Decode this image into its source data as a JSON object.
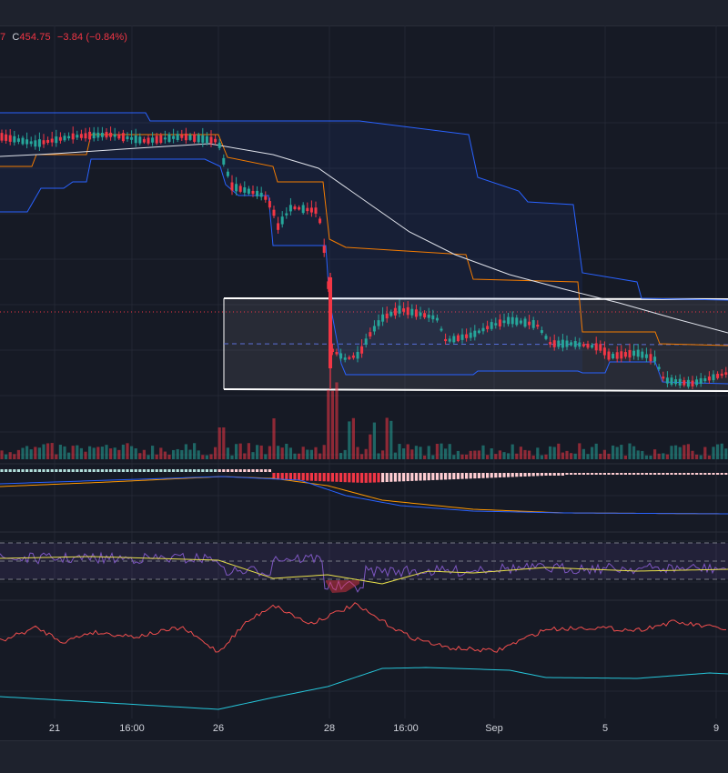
{
  "legend": {
    "cut_prefix": "7",
    "close_label": "C",
    "close_value": "454.75",
    "change": "−3.84 (−0.84%)"
  },
  "colors": {
    "up": "#26a69a",
    "down": "#f23645",
    "band_blue": "#2962ff",
    "band_orange": "#f57c00",
    "ma_white": "#e0e3eb",
    "rsi_purple": "#7e57c2",
    "rsi_yellow": "#e8e04a",
    "osc_red": "#f04e4e",
    "osc_cyan": "#26c6da",
    "macd_blue": "#2962ff",
    "macd_orange": "#ff9800",
    "background": "#161a25"
  },
  "chart_data": {
    "type": "candlestick",
    "x_tick_labels": [
      "21",
      "16:00",
      "26",
      "28",
      "16:00",
      "Sep",
      "5",
      "9"
    ],
    "last_close": 454.75,
    "change": -3.84,
    "change_pct": -0.84,
    "panes": [
      "price",
      "volume",
      "macd",
      "rsi",
      "oscillator_red",
      "oscillator_cyan"
    ],
    "grid": true,
    "legend_position": "top-left"
  }
}
